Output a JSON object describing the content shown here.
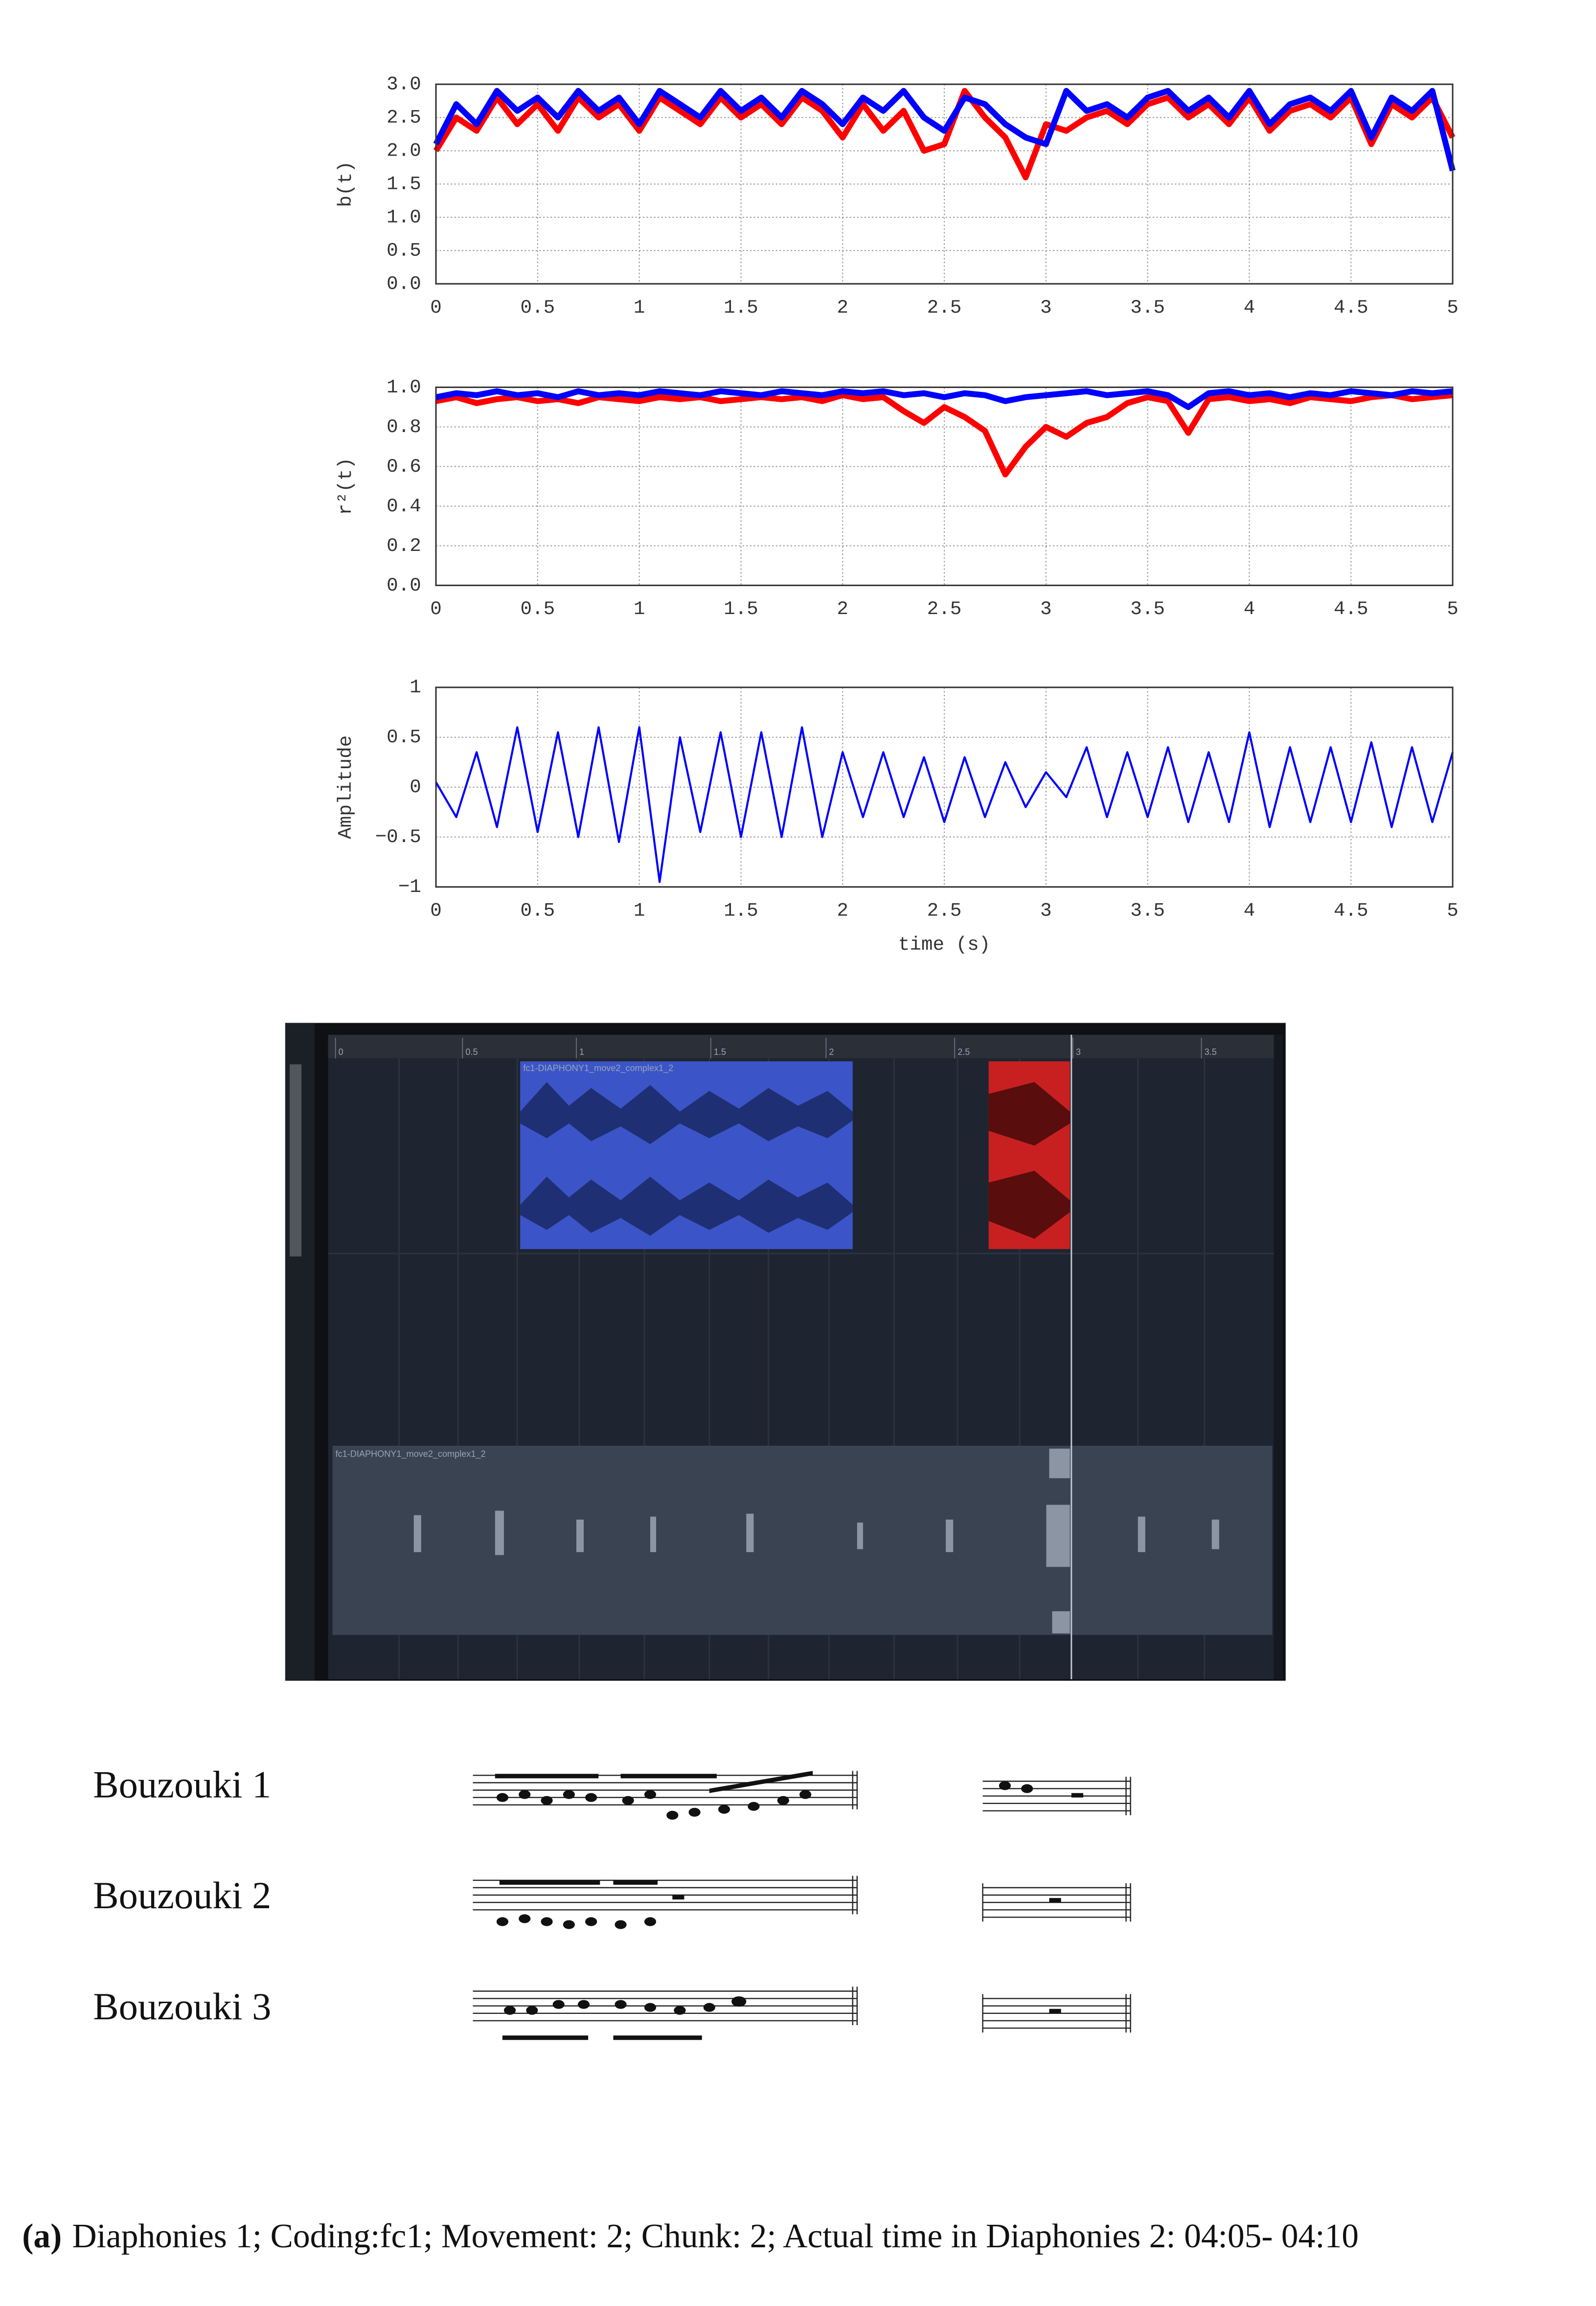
{
  "chart_data": [
    {
      "type": "line",
      "ylabel": "b(t)",
      "x": [
        0,
        0.1,
        0.2,
        0.3,
        0.4,
        0.5,
        0.6,
        0.7,
        0.8,
        0.9,
        1,
        1.1,
        1.2,
        1.3,
        1.4,
        1.5,
        1.6,
        1.7,
        1.8,
        1.9,
        2,
        2.1,
        2.2,
        2.3,
        2.4,
        2.5,
        2.6,
        2.7,
        2.8,
        2.9,
        3,
        3.1,
        3.2,
        3.3,
        3.4,
        3.5,
        3.6,
        3.7,
        3.8,
        3.9,
        4,
        4.1,
        4.2,
        4.3,
        4.4,
        4.5,
        4.6,
        4.7,
        4.8,
        4.9,
        5
      ],
      "series": [
        {
          "color": "#ff0000",
          "values": [
            2.0,
            2.5,
            2.3,
            2.8,
            2.4,
            2.7,
            2.3,
            2.8,
            2.5,
            2.7,
            2.3,
            2.8,
            2.6,
            2.4,
            2.8,
            2.5,
            2.7,
            2.4,
            2.8,
            2.6,
            2.2,
            2.7,
            2.3,
            2.6,
            2.0,
            2.1,
            2.9,
            2.5,
            2.2,
            1.6,
            2.4,
            2.3,
            2.5,
            2.6,
            2.4,
            2.7,
            2.8,
            2.5,
            2.7,
            2.4,
            2.8,
            2.3,
            2.6,
            2.7,
            2.5,
            2.8,
            2.1,
            2.7,
            2.5,
            2.8,
            2.2
          ]
        },
        {
          "color": "#0000ff",
          "values": [
            2.1,
            2.7,
            2.4,
            2.9,
            2.6,
            2.8,
            2.5,
            2.9,
            2.6,
            2.8,
            2.4,
            2.9,
            2.7,
            2.5,
            2.9,
            2.6,
            2.8,
            2.5,
            2.9,
            2.7,
            2.4,
            2.8,
            2.6,
            2.9,
            2.5,
            2.3,
            2.8,
            2.7,
            2.4,
            2.2,
            2.1,
            2.9,
            2.6,
            2.7,
            2.5,
            2.8,
            2.9,
            2.6,
            2.8,
            2.5,
            2.9,
            2.4,
            2.7,
            2.8,
            2.6,
            2.9,
            2.2,
            2.8,
            2.6,
            2.9,
            1.7
          ]
        }
      ],
      "xlim": [
        0,
        5
      ],
      "xticks": [
        0,
        0.5,
        1,
        1.5,
        2,
        2.5,
        3,
        3.5,
        4,
        4.5,
        5
      ],
      "ylim": [
        0,
        3
      ],
      "yticks": [
        {
          "value": 0,
          "label": "0.0"
        },
        0.5,
        {
          "value": 1,
          "label": "1.0"
        },
        1.5,
        {
          "value": 2,
          "label": "2.0"
        },
        2.5,
        {
          "value": 3,
          "label": "3.0"
        }
      ],
      "grid": true
    },
    {
      "type": "line",
      "ylabel": "r²(t)",
      "x": [
        0,
        0.1,
        0.2,
        0.3,
        0.4,
        0.5,
        0.6,
        0.7,
        0.8,
        0.9,
        1,
        1.1,
        1.2,
        1.3,
        1.4,
        1.5,
        1.6,
        1.7,
        1.8,
        1.9,
        2,
        2.1,
        2.2,
        2.3,
        2.4,
        2.5,
        2.6,
        2.7,
        2.8,
        2.9,
        3,
        3.1,
        3.2,
        3.3,
        3.4,
        3.5,
        3.6,
        3.7,
        3.8,
        3.9,
        4,
        4.1,
        4.2,
        4.3,
        4.4,
        4.5,
        4.6,
        4.7,
        4.8,
        4.9,
        5
      ],
      "series": [
        {
          "color": "#ff0000",
          "values": [
            0.93,
            0.95,
            0.92,
            0.94,
            0.95,
            0.93,
            0.94,
            0.92,
            0.95,
            0.94,
            0.93,
            0.95,
            0.94,
            0.95,
            0.93,
            0.94,
            0.95,
            0.94,
            0.95,
            0.93,
            0.96,
            0.94,
            0.95,
            0.88,
            0.82,
            0.9,
            0.85,
            0.78,
            0.56,
            0.7,
            0.8,
            0.75,
            0.82,
            0.85,
            0.92,
            0.95,
            0.93,
            0.77,
            0.94,
            0.95,
            0.93,
            0.94,
            0.92,
            0.95,
            0.94,
            0.93,
            0.95,
            0.96,
            0.94,
            0.95,
            0.96
          ]
        },
        {
          "color": "#0000ff",
          "values": [
            0.95,
            0.97,
            0.96,
            0.98,
            0.96,
            0.97,
            0.95,
            0.98,
            0.96,
            0.97,
            0.96,
            0.98,
            0.97,
            0.96,
            0.98,
            0.97,
            0.96,
            0.98,
            0.97,
            0.96,
            0.98,
            0.97,
            0.98,
            0.96,
            0.97,
            0.95,
            0.97,
            0.96,
            0.93,
            0.95,
            0.96,
            0.97,
            0.98,
            0.96,
            0.97,
            0.98,
            0.96,
            0.9,
            0.97,
            0.98,
            0.96,
            0.97,
            0.95,
            0.97,
            0.96,
            0.98,
            0.97,
            0.96,
            0.98,
            0.97,
            0.98
          ]
        }
      ],
      "xlim": [
        0,
        5
      ],
      "xticks": [
        0,
        0.5,
        1,
        1.5,
        2,
        2.5,
        3,
        3.5,
        4,
        4.5,
        5
      ],
      "ylim": [
        0,
        1
      ],
      "yticks": [
        {
          "value": 0,
          "label": "0.0"
        },
        0.2,
        0.4,
        0.6,
        0.8,
        {
          "value": 1,
          "label": "1.0"
        }
      ],
      "grid": true
    },
    {
      "type": "line",
      "ylabel": "Amplitude",
      "xlabel": "time (s)",
      "x": [
        0,
        0.1,
        0.2,
        0.3,
        0.4,
        0.5,
        0.6,
        0.7,
        0.8,
        0.9,
        1,
        1.1,
        1.2,
        1.3,
        1.4,
        1.5,
        1.6,
        1.7,
        1.8,
        1.9,
        2,
        2.1,
        2.2,
        2.3,
        2.4,
        2.5,
        2.6,
        2.7,
        2.8,
        2.9,
        3,
        3.1,
        3.2,
        3.3,
        3.4,
        3.5,
        3.6,
        3.7,
        3.8,
        3.9,
        4,
        4.1,
        4.2,
        4.3,
        4.4,
        4.5,
        4.6,
        4.7,
        4.8,
        4.9,
        5
      ],
      "series": [
        {
          "color": "#0000ff",
          "values": [
            0.05,
            -0.3,
            0.35,
            -0.4,
            0.6,
            -0.45,
            0.55,
            -0.5,
            0.6,
            -0.55,
            0.6,
            -0.95,
            0.5,
            -0.45,
            0.55,
            -0.5,
            0.55,
            -0.5,
            0.6,
            -0.5,
            0.35,
            -0.3,
            0.35,
            -0.3,
            0.3,
            -0.35,
            0.3,
            -0.3,
            0.25,
            -0.2,
            0.15,
            -0.1,
            0.4,
            -0.3,
            0.35,
            -0.3,
            0.4,
            -0.35,
            0.35,
            -0.35,
            0.55,
            -0.4,
            0.4,
            -0.35,
            0.4,
            -0.35,
            0.45,
            -0.4,
            0.4,
            -0.35,
            0.35
          ]
        }
      ],
      "xlim": [
        0,
        5
      ],
      "xticks": [
        0,
        0.5,
        1,
        1.5,
        2,
        2.5,
        3,
        3.5,
        4,
        4.5,
        5
      ],
      "ylim": [
        -1,
        1
      ],
      "yticks": [
        {
          "value": -1,
          "label": "−1"
        },
        {
          "value": -0.5,
          "label": "−0.5"
        },
        0,
        0.5,
        1
      ],
      "grid": true
    }
  ],
  "daw": {
    "ruler": [
      "0",
      "0.5",
      "1",
      "1.5",
      "2",
      "2.5",
      "3",
      "3.5"
    ],
    "clip_top": "fc1-DIAPHONY1_move2_complex1_2",
    "clip_bottom": "fc1-DIAPHONY1_move2_complex1_2"
  },
  "notation": {
    "instruments": [
      "Bouzouki 1",
      "Bouzouki 2",
      "Bouzouki 3"
    ]
  },
  "caption": {
    "label": "(a)",
    "text": "Diaphonies 1; Coding:fc1; Movement: 2; Chunk: 2; Actual time in Diaphonies 2: 04:05- 04:10"
  }
}
